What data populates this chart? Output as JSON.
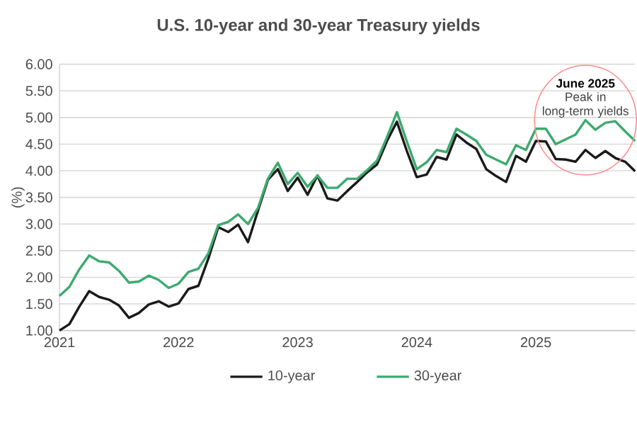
{
  "chart_data": {
    "type": "line",
    "title": "U.S. 10-year and 30-year Treasury yields",
    "ylabel": "(%)",
    "x": [
      "2021-01",
      "2021-02",
      "2021-03",
      "2021-04",
      "2021-05",
      "2021-06",
      "2021-07",
      "2021-08",
      "2021-09",
      "2021-10",
      "2021-11",
      "2021-12",
      "2022-01",
      "2022-02",
      "2022-03",
      "2022-04",
      "2022-05",
      "2022-06",
      "2022-07",
      "2022-08",
      "2022-09",
      "2022-10",
      "2022-11",
      "2022-12",
      "2023-01",
      "2023-02",
      "2023-03",
      "2023-04",
      "2023-05",
      "2023-06",
      "2023-07",
      "2023-08",
      "2023-09",
      "2023-10",
      "2023-11",
      "2023-12",
      "2024-01",
      "2024-02",
      "2024-03",
      "2024-04",
      "2024-05",
      "2024-06",
      "2024-07",
      "2024-08",
      "2024-09",
      "2024-10",
      "2024-11",
      "2024-12",
      "2025-01",
      "2025-02",
      "2025-03",
      "2025-04",
      "2025-05",
      "2025-06",
      "2025-07",
      "2025-08",
      "2025-09",
      "2025-10",
      "2025-11"
    ],
    "series": [
      {
        "name": "10-year",
        "color": "#1a1a1a",
        "values": [
          1.0,
          1.12,
          1.45,
          1.74,
          1.63,
          1.58,
          1.47,
          1.24,
          1.33,
          1.49,
          1.55,
          1.45,
          1.51,
          1.78,
          1.84,
          2.35,
          2.94,
          2.85,
          2.99,
          2.66,
          3.25,
          3.83,
          4.03,
          3.62,
          3.87,
          3.55,
          3.91,
          3.48,
          3.44,
          3.62,
          3.79,
          3.97,
          4.12,
          4.56,
          4.92,
          4.37,
          3.88,
          3.93,
          4.26,
          4.21,
          4.68,
          4.53,
          4.41,
          4.03,
          3.9,
          3.79,
          4.28,
          4.17,
          4.56,
          4.55,
          4.22,
          4.21,
          4.17,
          4.39,
          4.24,
          4.37,
          4.24,
          4.17,
          3.99
        ]
      },
      {
        "name": "30-year",
        "color": "#3daa6e",
        "values": [
          1.65,
          1.82,
          2.15,
          2.41,
          2.3,
          2.28,
          2.12,
          1.9,
          1.92,
          2.03,
          1.95,
          1.8,
          1.88,
          2.1,
          2.16,
          2.45,
          2.98,
          3.04,
          3.18,
          3.0,
          3.3,
          3.85,
          4.15,
          3.75,
          3.96,
          3.7,
          3.91,
          3.68,
          3.68,
          3.85,
          3.85,
          4.01,
          4.19,
          4.63,
          5.1,
          4.55,
          4.03,
          4.16,
          4.39,
          4.35,
          4.79,
          4.68,
          4.56,
          4.3,
          4.21,
          4.12,
          4.48,
          4.39,
          4.79,
          4.79,
          4.5,
          4.59,
          4.68,
          4.95,
          4.77,
          4.9,
          4.93,
          4.74,
          4.56
        ]
      }
    ],
    "xlim": [
      "2021-01",
      "2025-11"
    ],
    "xticks": [
      "2021",
      "2022",
      "2023",
      "2024",
      "2025"
    ],
    "ylim": [
      1,
      6
    ],
    "yticks": [
      {
        "value": 1,
        "label": "1.00"
      },
      {
        "value": 1.5,
        "label": "1.50"
      },
      {
        "value": 2,
        "label": "2.00"
      },
      {
        "value": 2.5,
        "label": "2.50"
      },
      {
        "value": 3,
        "label": "3.00"
      },
      {
        "value": 3.5,
        "label": "3.50"
      },
      {
        "value": 4,
        "label": "4.00"
      },
      {
        "value": 4.5,
        "label": "4.50"
      },
      {
        "value": 5,
        "label": "5.00"
      },
      {
        "value": 5.5,
        "label": "5.50"
      },
      {
        "value": 6,
        "label": "6.00"
      }
    ],
    "grid": "y",
    "legend": "bottom",
    "marker": "none",
    "line_style": "solid",
    "annotations": [
      {
        "text": "June 2025",
        "x": "2025-06",
        "y": 4.95
      },
      "Peak in long-term yields"
    ]
  }
}
